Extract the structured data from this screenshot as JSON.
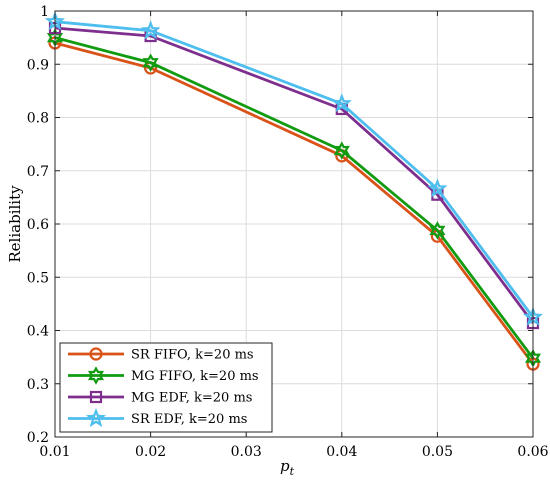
{
  "chart_data": {
    "type": "line",
    "xlabel": "p",
    "xlabel_sub": "t",
    "ylabel": "Reliability",
    "xlim": [
      0.01,
      0.06
    ],
    "ylim": [
      0.2,
      1.0
    ],
    "xticks": [
      "0.01",
      "0.02",
      "0.03",
      "0.04",
      "0.05",
      "0.06"
    ],
    "yticks": [
      "0.2",
      "0.3",
      "0.4",
      "0.5",
      "0.6",
      "0.7",
      "0.8",
      "0.9",
      "1"
    ],
    "grid": true,
    "legend_position": "bottom-left",
    "series": [
      {
        "name": "SR FIFO, k=20 ms",
        "color": "#D95319",
        "marker": "circle",
        "x": [
          0.01,
          0.02,
          0.04,
          0.05,
          0.06
        ],
        "y": [
          0.94,
          0.893,
          0.728,
          0.577,
          0.337
        ]
      },
      {
        "name": "MG FIFO, k=20 ms",
        "color": "#119B11",
        "marker": "hexagram",
        "x": [
          0.01,
          0.02,
          0.04,
          0.05,
          0.06
        ],
        "y": [
          0.95,
          0.903,
          0.738,
          0.588,
          0.348
        ]
      },
      {
        "name": "MG EDF, k=20 ms",
        "color": "#7E2F8E",
        "marker": "square",
        "x": [
          0.01,
          0.02,
          0.04,
          0.05,
          0.06
        ],
        "y": [
          0.968,
          0.953,
          0.816,
          0.655,
          0.414
        ]
      },
      {
        "name": "SR EDF, k=20 ms",
        "color": "#4DBEEE",
        "marker": "pentagram",
        "x": [
          0.01,
          0.02,
          0.04,
          0.05,
          0.06
        ],
        "y": [
          0.98,
          0.963,
          0.826,
          0.666,
          0.425
        ]
      }
    ]
  }
}
